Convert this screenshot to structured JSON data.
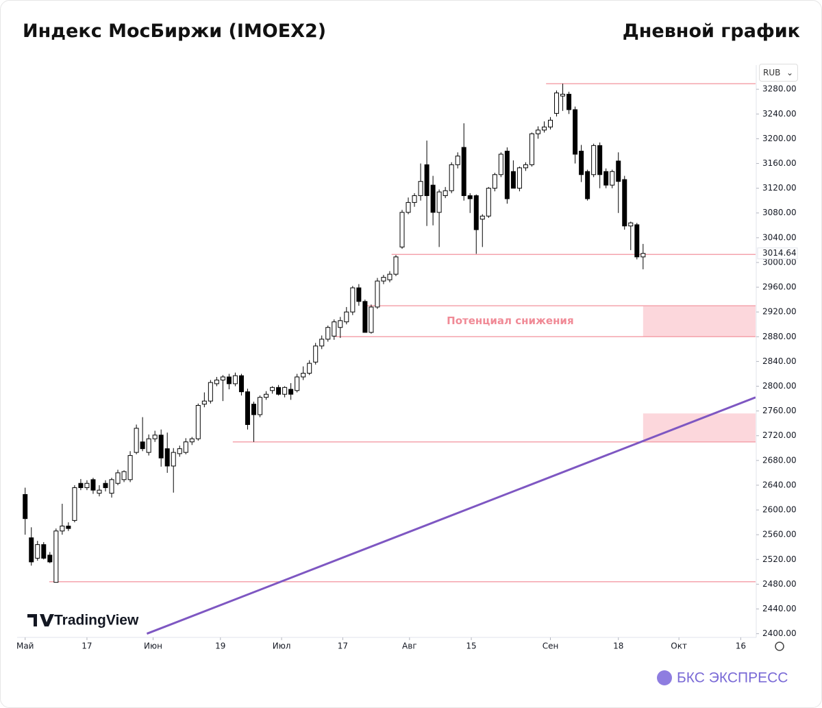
{
  "header": {
    "title": "Индекс МосБиржи (IMOEX2)",
    "subtitle": "Дневной график"
  },
  "currency": "RUB",
  "watermark": "TradingView",
  "brand": "БКС ЭКСПРЕСС",
  "chart_data": {
    "type": "candlestick",
    "x": [
      0,
      1,
      2,
      3,
      4,
      5,
      6,
      7,
      8,
      9,
      10,
      11,
      12,
      13,
      14,
      15,
      16,
      17,
      18,
      19,
      20,
      21,
      22,
      23,
      24,
      25,
      26,
      27,
      28,
      29,
      30,
      31,
      32,
      33,
      34,
      35,
      36,
      37,
      38,
      39,
      40,
      41,
      42,
      43,
      44,
      45,
      46,
      47,
      48,
      49,
      50,
      51,
      52,
      53,
      54,
      55,
      56,
      57,
      58,
      59,
      60,
      61,
      62,
      63,
      64,
      65,
      66,
      67,
      68,
      69,
      70,
      71,
      72,
      73,
      74,
      75,
      76,
      77,
      78,
      79,
      80,
      81,
      82,
      83,
      84,
      85,
      86,
      87,
      88,
      89,
      90,
      91,
      92,
      93,
      94,
      95,
      96,
      97,
      98,
      99,
      100
    ],
    "open": [
      2625,
      2555,
      2522,
      2544,
      2527,
      2483,
      2566,
      2574,
      2583,
      2643,
      2636,
      2649,
      2627,
      2643,
      2627,
      2643,
      2649,
      2649,
      2693,
      2710,
      2693,
      2715,
      2721,
      2699,
      2671,
      2691,
      2693,
      2710,
      2715,
      2771,
      2776,
      2804,
      2810,
      2815,
      2804,
      2817,
      2791,
      2771,
      2754,
      2782,
      2793,
      2798,
      2787,
      2795,
      2793,
      2815,
      2821,
      2839,
      2865,
      2876,
      2881,
      2895,
      2904,
      2920,
      2959,
      2937,
      2887,
      2928,
      2970,
      2972,
      2981,
      3025,
      3081,
      3097,
      3108,
      3158,
      3125,
      3081,
      3108,
      3116,
      3158,
      3186,
      3108,
      3108,
      3070,
      3075,
      3120,
      3142,
      3180,
      3147,
      3120,
      3153,
      3158,
      3208,
      3214,
      3219,
      3241,
      3269,
      3272,
      3247,
      3180,
      3147,
      3142,
      3189,
      3147,
      3125,
      3164,
      3134,
      3059,
      3061,
      3009
    ],
    "high": [
      2636,
      2572,
      2550,
      2548,
      2532,
      2570,
      2610,
      2580,
      2640,
      2650,
      2648,
      2652,
      2640,
      2648,
      2652,
      2665,
      2664,
      2695,
      2738,
      2750,
      2722,
      2728,
      2730,
      2725,
      2700,
      2704,
      2716,
      2718,
      2772,
      2790,
      2810,
      2815,
      2818,
      2820,
      2822,
      2820,
      2796,
      2775,
      2785,
      2792,
      2800,
      2802,
      2800,
      2805,
      2820,
      2832,
      2842,
      2870,
      2882,
      2898,
      2908,
      2912,
      2928,
      2962,
      2965,
      2940,
      2932,
      2975,
      2980,
      2986,
      3012,
      3085,
      3105,
      3112,
      3160,
      3197,
      3140,
      3118,
      3122,
      3162,
      3178,
      3225,
      3112,
      3110,
      3078,
      3122,
      3145,
      3178,
      3186,
      3165,
      3155,
      3162,
      3210,
      3220,
      3228,
      3235,
      3278,
      3289,
      3276,
      3252,
      3190,
      3150,
      3192,
      3194,
      3152,
      3150,
      3178,
      3140,
      3066,
      3064,
      3030
    ],
    "low": [
      2560,
      2510,
      2518,
      2520,
      2514,
      2483,
      2560,
      2566,
      2580,
      2632,
      2632,
      2626,
      2622,
      2630,
      2620,
      2640,
      2645,
      2645,
      2690,
      2695,
      2688,
      2710,
      2670,
      2660,
      2628,
      2686,
      2690,
      2705,
      2712,
      2766,
      2772,
      2800,
      2776,
      2795,
      2800,
      2785,
      2730,
      2710,
      2750,
      2778,
      2788,
      2785,
      2782,
      2778,
      2790,
      2810,
      2818,
      2835,
      2860,
      2872,
      2875,
      2878,
      2900,
      2915,
      2930,
      2887,
      2885,
      2925,
      2965,
      2968,
      2978,
      3022,
      3078,
      3090,
      3100,
      3059,
      3060,
      3025,
      3104,
      3112,
      3152,
      3100,
      3080,
      3014,
      3025,
      3072,
      3115,
      3138,
      3095,
      3120,
      3115,
      3148,
      3155,
      3200,
      3210,
      3215,
      3236,
      3245,
      3240,
      3160,
      3130,
      3100,
      3138,
      3120,
      3120,
      3120,
      3080,
      3053,
      3020,
      3005,
      2989
    ],
    "close": [
      2586,
      2516,
      2544,
      2522,
      2516,
      2566,
      2574,
      2570,
      2636,
      2636,
      2643,
      2632,
      2632,
      2636,
      2649,
      2660,
      2662,
      2688,
      2732,
      2699,
      2715,
      2721,
      2684,
      2671,
      2693,
      2699,
      2710,
      2715,
      2769,
      2776,
      2806,
      2810,
      2815,
      2804,
      2817,
      2791,
      2738,
      2754,
      2782,
      2787,
      2798,
      2787,
      2798,
      2787,
      2815,
      2821,
      2837,
      2865,
      2876,
      2895,
      2904,
      2906,
      2920,
      2959,
      2937,
      2887,
      2928,
      2970,
      2976,
      2981,
      3009,
      3081,
      3097,
      3108,
      3131,
      3108,
      3081,
      3114,
      3116,
      3158,
      3172,
      3108,
      3103,
      3053,
      3075,
      3120,
      3142,
      3175,
      3103,
      3120,
      3153,
      3158,
      3208,
      3214,
      3219,
      3230,
      3274,
      3272,
      3247,
      3175,
      3142,
      3103,
      3189,
      3142,
      3125,
      3147,
      3131,
      3059,
      3064,
      3009,
      3014.64
    ],
    "up_color": "#ffffff",
    "down_color": "#000000",
    "edge_color": "#000000",
    "xlim": [
      -1.3,
      118.2
    ],
    "xticks": [
      {
        "value": 0,
        "label": "Май"
      },
      {
        "value": 10,
        "label": "17"
      },
      {
        "value": 20.7,
        "label": "Июн"
      },
      {
        "value": 31.6,
        "label": "19"
      },
      {
        "value": 41.5,
        "label": "Июл"
      },
      {
        "value": 51.4,
        "label": "17"
      },
      {
        "value": 62.2,
        "label": "Авг"
      },
      {
        "value": 72.2,
        "label": "15"
      },
      {
        "value": 85,
        "label": "Сен"
      },
      {
        "value": 96,
        "label": "18"
      },
      {
        "value": 105.8,
        "label": "Окт"
      },
      {
        "value": 115.8,
        "label": "16"
      }
    ],
    "ylim": [
      2394,
      3319
    ],
    "yticks": [
      {
        "value": 2400,
        "label": "2400.00"
      },
      {
        "value": 2440,
        "label": "2440.00"
      },
      {
        "value": 2480,
        "label": "2480.00"
      },
      {
        "value": 2520,
        "label": "2520.00"
      },
      {
        "value": 2560,
        "label": "2560.00"
      },
      {
        "value": 2600,
        "label": "2600.00"
      },
      {
        "value": 2640,
        "label": "2640.00"
      },
      {
        "value": 2680,
        "label": "2680.00"
      },
      {
        "value": 2720,
        "label": "2720.00"
      },
      {
        "value": 2760,
        "label": "2760.00"
      },
      {
        "value": 2800,
        "label": "2800.00"
      },
      {
        "value": 2840,
        "label": "2840.00"
      },
      {
        "value": 2880,
        "label": "2880.00"
      },
      {
        "value": 2920,
        "label": "2920.00"
      },
      {
        "value": 2960,
        "label": "2960.00"
      },
      {
        "value": 3000,
        "label": "3000.00"
      },
      {
        "value": 3040,
        "label": "3040.00"
      },
      {
        "value": 3080,
        "label": "3080.00"
      },
      {
        "value": 3120,
        "label": "3120.00"
      },
      {
        "value": 3160,
        "label": "3160.00"
      },
      {
        "value": 3200,
        "label": "3200.00"
      },
      {
        "value": 3240,
        "label": "3240.00"
      },
      {
        "value": 3280,
        "label": "3280.00"
      }
    ],
    "last_price": {
      "value": 3014.64,
      "label": "3014.64"
    },
    "levels": [
      {
        "value": 3289,
        "from": 84.3
      },
      {
        "value": 3013,
        "from": 59.3
      },
      {
        "value": 2930,
        "from": 55.2
      },
      {
        "value": 2880,
        "from": 50.2
      },
      {
        "value": 2710,
        "from": 33.6
      },
      {
        "value": 2484,
        "from": 3.9
      }
    ],
    "level_color": "#f4a3ac",
    "zones": [
      {
        "from": 100,
        "low": 2880,
        "high": 2930
      },
      {
        "from": 100,
        "low": 2710,
        "high": 2756
      }
    ],
    "zone_color": "#fcd7dc",
    "annotation": {
      "text": "Потенциал снижения",
      "x": 78.5,
      "y": 2905,
      "color": "#f08a96"
    },
    "trendline": {
      "x": [
        19.7,
        118.2
      ],
      "y": [
        2400,
        2782
      ],
      "color": "#7e57c2"
    },
    "grid": false
  }
}
